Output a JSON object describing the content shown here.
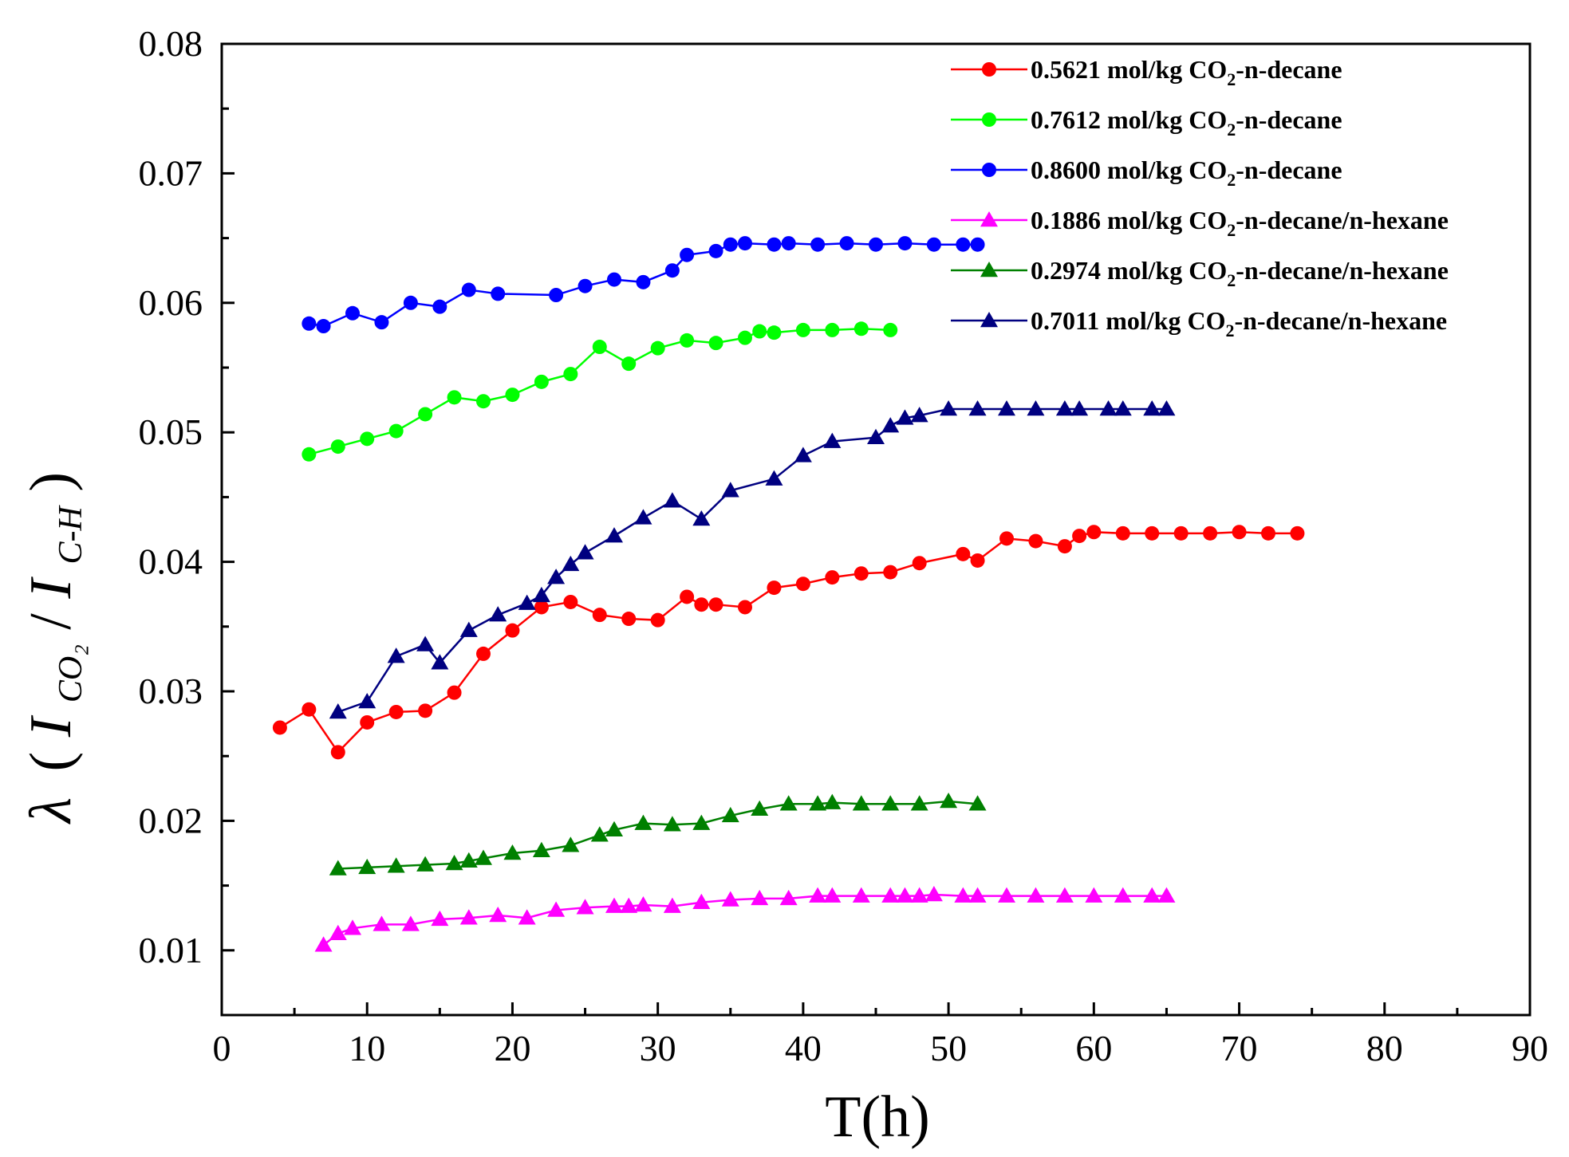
{
  "chart_data": {
    "type": "line",
    "title": "",
    "xlabel": "T(h)",
    "ylabel": {
      "lambda": "λ",
      "open": "(",
      "I": "I",
      "co2_sub": "CO₂",
      "slash": "/",
      "ch_sub": "C-H",
      "close": ")"
    },
    "xlim": [
      0,
      90
    ],
    "ylim": [
      0.005,
      0.08
    ],
    "xticks": [
      "0",
      "10",
      "20",
      "30",
      "40",
      "50",
      "60",
      "70",
      "80",
      "90"
    ],
    "yticks": [
      "0.01",
      "0.02",
      "0.03",
      "0.04",
      "0.05",
      "0.06",
      "0.07",
      "0.08"
    ],
    "legend_position": "top-right",
    "series": [
      {
        "name": "0.5621 mol/kg CO2-n-decane",
        "label": {
          "pre": "0.5621 mol/kg CO",
          "sub": "2",
          "post": "-n-decane"
        },
        "color": "#ff0000",
        "marker": "circle",
        "x": [
          4,
          6,
          8,
          10,
          12,
          14,
          16,
          18,
          20,
          22,
          24,
          26,
          28,
          30,
          32,
          33,
          34,
          36,
          38,
          40,
          42,
          44,
          46,
          48,
          51,
          52,
          54,
          56,
          58,
          59,
          60,
          62,
          64,
          66,
          68,
          70,
          72,
          74
        ],
        "y": [
          0.0272,
          0.0286,
          0.0253,
          0.0276,
          0.0284,
          0.0285,
          0.0299,
          0.0329,
          0.0347,
          0.0365,
          0.0369,
          0.0359,
          0.0356,
          0.0355,
          0.0373,
          0.0367,
          0.0367,
          0.0365,
          0.038,
          0.0383,
          0.0388,
          0.0391,
          0.0392,
          0.0399,
          0.0406,
          0.0401,
          0.0418,
          0.0416,
          0.0412,
          0.042,
          0.0423,
          0.0422,
          0.0422,
          0.0422,
          0.0422,
          0.0423,
          0.0422,
          0.0422
        ]
      },
      {
        "name": "0.7612 mol/kg CO2-n-decane",
        "label": {
          "pre": "0.7612 mol/kg CO",
          "sub": "2",
          "post": "-n-decane"
        },
        "color": "#00ff00",
        "marker": "circle",
        "x": [
          6,
          8,
          10,
          12,
          14,
          16,
          18,
          20,
          22,
          24,
          26,
          28,
          30,
          32,
          34,
          36,
          37,
          38,
          40,
          42,
          44,
          46
        ],
        "y": [
          0.0483,
          0.0489,
          0.0495,
          0.0501,
          0.0514,
          0.0527,
          0.0524,
          0.0529,
          0.0539,
          0.0545,
          0.0566,
          0.0553,
          0.0565,
          0.0571,
          0.0569,
          0.0573,
          0.0578,
          0.0577,
          0.0579,
          0.0579,
          0.058,
          0.0579
        ]
      },
      {
        "name": "0.8600 mol/kg CO2-n-decane",
        "label": {
          "pre": "0.8600 mol/kg CO",
          "sub": "2",
          "post": "-n-decane"
        },
        "color": "#0000ff",
        "marker": "circle",
        "x": [
          6,
          7,
          9,
          11,
          13,
          15,
          17,
          19,
          23,
          25,
          27,
          29,
          31,
          32,
          34,
          35,
          36,
          38,
          39,
          41,
          43,
          45,
          47,
          49,
          51,
          52
        ],
        "y": [
          0.0584,
          0.0582,
          0.0592,
          0.0585,
          0.06,
          0.0597,
          0.061,
          0.0607,
          0.0606,
          0.0613,
          0.0618,
          0.0616,
          0.0625,
          0.0637,
          0.064,
          0.0645,
          0.0646,
          0.0645,
          0.0646,
          0.0645,
          0.0646,
          0.0645,
          0.0646,
          0.0645,
          0.0645,
          0.0645
        ]
      },
      {
        "name": "0.1886 mol/kg CO2-n-decane/n-hexane",
        "label": {
          "pre": "0.1886 mol/kg CO",
          "sub": "2",
          "post": "-n-decane/n-hexane"
        },
        "color": "#ff00ff",
        "marker": "triangle",
        "x": [
          7,
          8,
          9,
          11,
          13,
          15,
          17,
          19,
          21,
          23,
          25,
          27,
          28,
          29,
          31,
          33,
          35,
          37,
          39,
          41,
          42,
          44,
          46,
          47,
          48,
          49,
          51,
          52,
          54,
          56,
          58,
          60,
          62,
          64,
          65
        ],
        "y": [
          0.0104,
          0.0113,
          0.0117,
          0.012,
          0.012,
          0.0124,
          0.0125,
          0.0127,
          0.0125,
          0.0131,
          0.0133,
          0.0134,
          0.0134,
          0.0135,
          0.0134,
          0.0137,
          0.0139,
          0.014,
          0.014,
          0.0142,
          0.0142,
          0.0142,
          0.0142,
          0.0142,
          0.0142,
          0.0143,
          0.0142,
          0.0142,
          0.0142,
          0.0142,
          0.0142,
          0.0142,
          0.0142,
          0.0142,
          0.0142
        ]
      },
      {
        "name": "0.2974 mol/kg CO2-n-decane/n-hexane",
        "label": {
          "pre": "0.2974 mol/kg CO",
          "sub": "2",
          "post": "-n-decane/n-hexane"
        },
        "color": "#008000",
        "marker": "triangle",
        "x": [
          8,
          10,
          12,
          14,
          16,
          17,
          18,
          20,
          22,
          24,
          26,
          27,
          29,
          31,
          33,
          35,
          37,
          39,
          41,
          42,
          44,
          46,
          48,
          50,
          52
        ],
        "y": [
          0.0163,
          0.0164,
          0.0165,
          0.0166,
          0.0167,
          0.0169,
          0.0171,
          0.0175,
          0.0177,
          0.0181,
          0.0189,
          0.0193,
          0.0198,
          0.0197,
          0.0198,
          0.0204,
          0.0209,
          0.0213,
          0.0213,
          0.0214,
          0.0213,
          0.0213,
          0.0213,
          0.0215,
          0.0213
        ]
      },
      {
        "name": "0.7011 mol/kg CO2-n-decane/n-hexane",
        "label": {
          "pre": "0.7011 mol/kg CO",
          "sub": "2",
          "post": "-n-decane/n-hexane"
        },
        "color": "#000080",
        "marker": "triangle",
        "x": [
          8,
          10,
          12,
          14,
          15,
          17,
          19,
          21,
          22,
          23,
          24,
          25,
          27,
          29,
          31,
          33,
          35,
          38,
          40,
          42,
          45,
          46,
          47,
          48,
          50,
          52,
          54,
          56,
          58,
          59,
          61,
          62,
          64,
          65
        ],
        "y": [
          0.0284,
          0.0292,
          0.0327,
          0.0336,
          0.0322,
          0.0347,
          0.0359,
          0.0368,
          0.0374,
          0.0388,
          0.0398,
          0.0407,
          0.042,
          0.0434,
          0.0447,
          0.0433,
          0.0455,
          0.0464,
          0.0482,
          0.0493,
          0.0496,
          0.0505,
          0.0511,
          0.0513,
          0.0518,
          0.0518,
          0.0518,
          0.0518,
          0.0518,
          0.0518,
          0.0518,
          0.0518,
          0.0518,
          0.0518
        ]
      }
    ]
  }
}
